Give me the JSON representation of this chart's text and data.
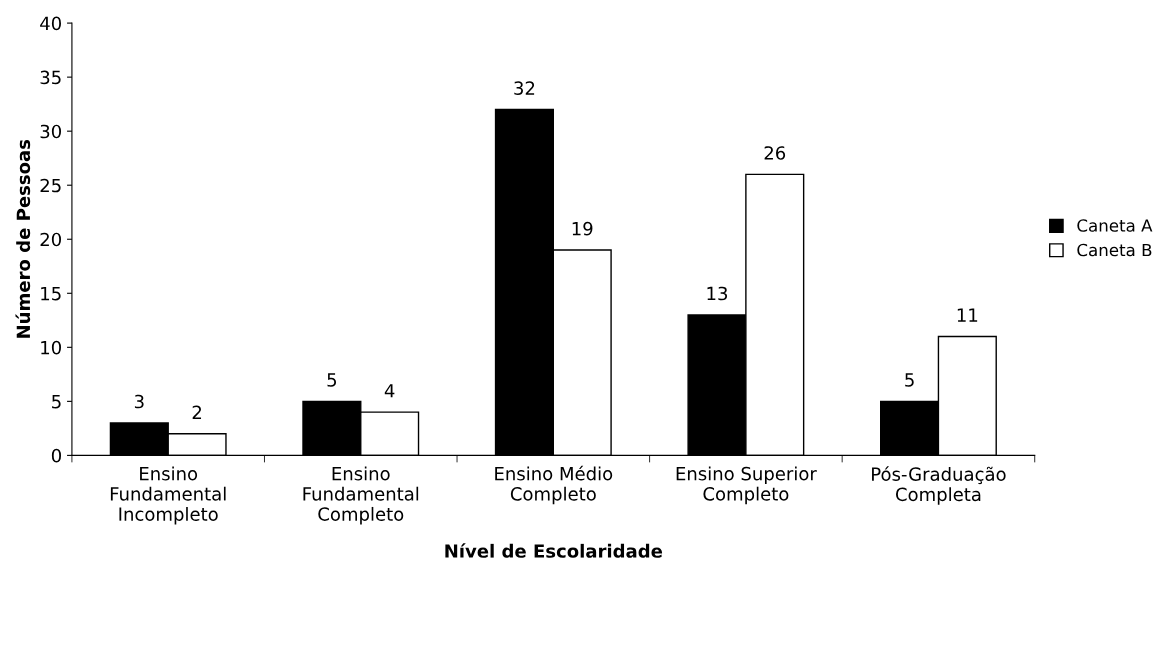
{
  "chart_data": {
    "type": "bar",
    "xlabel": "Nível de Escolaridade",
    "ylabel": "Número de Pessoas",
    "categories": [
      "Ensino\nFundamental\nIncompleto",
      "Ensino\nFundamental\nCompleto",
      "Ensino Médio\nCompleto",
      "Ensino Superior\nCompleto",
      "Pós-Graduação\nCompleta"
    ],
    "series": [
      {
        "name": "Caneta A",
        "color": "#000000",
        "values": [
          3,
          5,
          32,
          13,
          5
        ]
      },
      {
        "name": "Caneta B",
        "color": "#ffffff",
        "values": [
          2,
          4,
          19,
          26,
          11
        ]
      }
    ],
    "ylim": [
      0,
      40
    ],
    "yticks": [
      0,
      5,
      10,
      15,
      20,
      25,
      30,
      35,
      40
    ],
    "grid": false,
    "legend": "right",
    "data_labels": true
  }
}
